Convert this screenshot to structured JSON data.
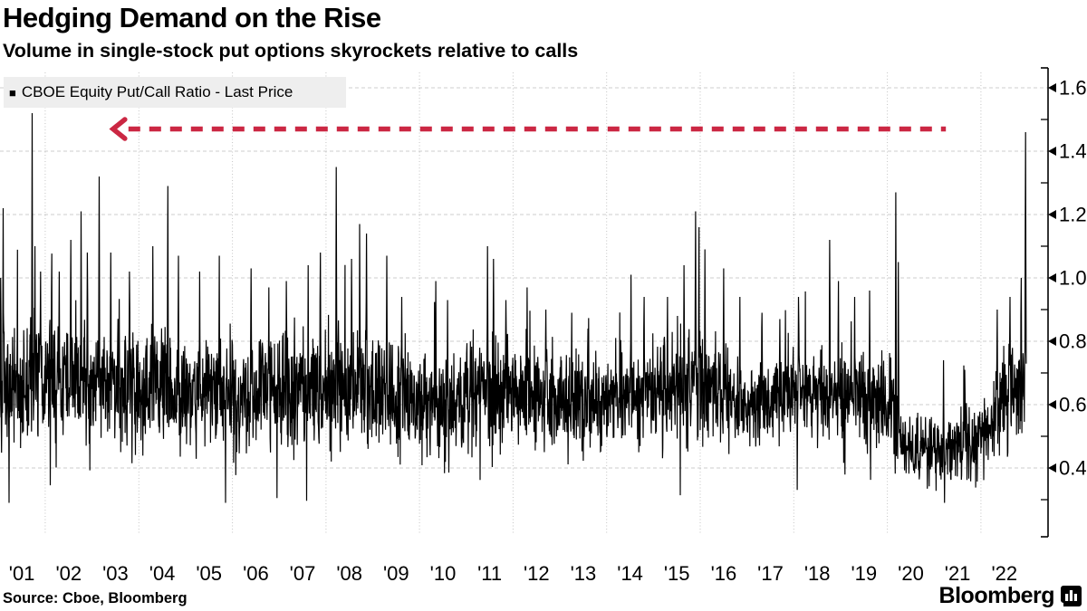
{
  "header": {
    "title": "Hedging Demand on the Rise",
    "subtitle": "Volume in single-stock put options skyrockets relative to calls"
  },
  "legend": {
    "marker": "■",
    "label": "CBOE Equity Put/Call Ratio - Last Price"
  },
  "footer": {
    "source": "Source: Cboe, Bloomberg",
    "brand": "Bloomberg"
  },
  "colors": {
    "series": "#000000",
    "arrow": "#cb2743",
    "grid_h": "#cdcdcd",
    "grid_v": "#c4c4c4",
    "axis": "#000000",
    "legend_bg": "#eeeeee"
  },
  "chart_data": {
    "type": "line",
    "title": "Hedging Demand on the Rise",
    "subtitle": "Volume in single-stock put options skyrockets relative to calls",
    "series_name": "CBOE Equity Put/Call Ratio - Last Price",
    "x_range": [
      2001,
      2023
    ],
    "ylim": [
      0.2,
      1.66
    ],
    "y_ticks": [
      0.4,
      0.6,
      0.8,
      1.0,
      1.2,
      1.4,
      1.6
    ],
    "y_minor_ticks": [
      0.3,
      0.5,
      0.7,
      0.9,
      1.1,
      1.3,
      1.5
    ],
    "x_tick_years": [
      2001,
      2002,
      2003,
      2004,
      2005,
      2006,
      2007,
      2008,
      2009,
      2010,
      2011,
      2012,
      2013,
      2014,
      2015,
      2016,
      2017,
      2018,
      2019,
      2020,
      2021,
      2022
    ],
    "x_tick_labels": [
      "'01",
      "'02",
      "'03",
      "'04",
      "'05",
      "'06",
      "'07",
      "'08",
      "'09",
      "'10",
      "'11",
      "'12",
      "'13",
      "'14",
      "'15",
      "'16",
      "'17",
      "'18",
      "'19",
      "'20",
      "'21",
      "'22"
    ],
    "x_gridline_years": [
      2002,
      2004,
      2006,
      2008,
      2010,
      2012,
      2014,
      2016,
      2018,
      2020,
      2022
    ],
    "grid": true,
    "legend_position": "top-left",
    "baseline": [
      [
        2001.0,
        0.63,
        0.13
      ],
      [
        2002.0,
        0.67,
        0.13
      ],
      [
        2003.2,
        0.68,
        0.13
      ],
      [
        2004.5,
        0.65,
        0.12
      ],
      [
        2006.0,
        0.63,
        0.11
      ],
      [
        2007.5,
        0.65,
        0.12
      ],
      [
        2008.6,
        0.67,
        0.13
      ],
      [
        2010.0,
        0.59,
        0.12
      ],
      [
        2011.6,
        0.64,
        0.12
      ],
      [
        2013.0,
        0.61,
        0.1
      ],
      [
        2014.5,
        0.63,
        0.11
      ],
      [
        2015.8,
        0.67,
        0.12
      ],
      [
        2017.0,
        0.6,
        0.09
      ],
      [
        2018.5,
        0.64,
        0.1
      ],
      [
        2019.5,
        0.61,
        0.1
      ],
      [
        2020.1,
        0.62,
        0.1
      ],
      [
        2020.35,
        0.46,
        0.07
      ],
      [
        2021.3,
        0.45,
        0.07
      ],
      [
        2021.9,
        0.5,
        0.08
      ],
      [
        2022.5,
        0.6,
        0.1
      ],
      [
        2022.97,
        0.7,
        0.12
      ]
    ],
    "spikes": [
      [
        2001.05,
        1.0
      ],
      [
        2001.1,
        1.22
      ],
      [
        2001.72,
        1.52
      ],
      [
        2001.78,
        1.1
      ],
      [
        2001.9,
        1.02
      ],
      [
        2002.3,
        1.02
      ],
      [
        2002.55,
        1.12
      ],
      [
        2002.77,
        1.21
      ],
      [
        2002.9,
        1.08
      ],
      [
        2003.15,
        1.32
      ],
      [
        2003.4,
        1.08
      ],
      [
        2003.8,
        1.02
      ],
      [
        2004.3,
        1.1
      ],
      [
        2004.62,
        1.29
      ],
      [
        2004.85,
        1.07
      ],
      [
        2005.3,
        1.02
      ],
      [
        2005.72,
        1.07
      ],
      [
        2006.4,
        1.03
      ],
      [
        2006.78,
        0.97
      ],
      [
        2007.15,
        0.99
      ],
      [
        2007.62,
        1.04
      ],
      [
        2007.88,
        1.08
      ],
      [
        2008.22,
        1.35
      ],
      [
        2008.55,
        1.06
      ],
      [
        2008.72,
        1.17
      ],
      [
        2008.87,
        1.14
      ],
      [
        2009.3,
        1.07
      ],
      [
        2009.62,
        0.94
      ],
      [
        2010.35,
        0.99
      ],
      [
        2010.6,
        0.93
      ],
      [
        2011.45,
        1.1
      ],
      [
        2011.58,
        1.06
      ],
      [
        2011.85,
        0.93
      ],
      [
        2012.3,
        0.97
      ],
      [
        2012.7,
        0.9
      ],
      [
        2013.25,
        0.89
      ],
      [
        2013.6,
        0.84
      ],
      [
        2014.52,
        1.01
      ],
      [
        2014.8,
        0.94
      ],
      [
        2015.3,
        0.94
      ],
      [
        2015.65,
        1.04
      ],
      [
        2015.9,
        1.21
      ],
      [
        2015.97,
        1.16
      ],
      [
        2016.1,
        1.09
      ],
      [
        2016.5,
        1.03
      ],
      [
        2016.85,
        0.94
      ],
      [
        2017.32,
        0.89
      ],
      [
        2017.7,
        0.87
      ],
      [
        2018.1,
        0.94
      ],
      [
        2018.77,
        1.12
      ],
      [
        2018.95,
        0.99
      ],
      [
        2019.3,
        0.94
      ],
      [
        2019.62,
        0.96
      ],
      [
        2020.18,
        1.27
      ],
      [
        2020.23,
        1.05
      ],
      [
        2021.2,
        0.74
      ],
      [
        2021.65,
        0.71
      ],
      [
        2022.35,
        0.9
      ],
      [
        2022.62,
        0.94
      ],
      [
        2022.86,
        1.0
      ],
      [
        2022.95,
        1.46
      ]
    ],
    "annotation": {
      "type": "dashed-arrow",
      "direction": "left",
      "y_value": 1.47,
      "x_from": 2003.45,
      "x_to": 2021.25,
      "color": "#cb2743"
    }
  }
}
